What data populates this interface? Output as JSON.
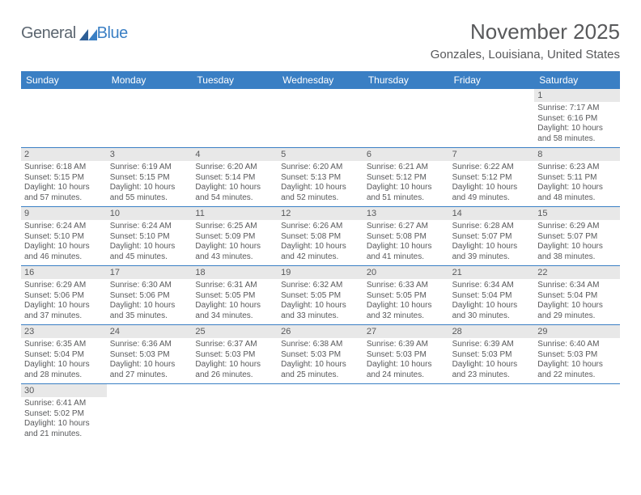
{
  "logo": {
    "part1": "General",
    "part2": "Blue"
  },
  "header": {
    "title": "November 2025",
    "location": "Gonzales, Louisiana, United States"
  },
  "colors": {
    "accent": "#3a7fc4",
    "text": "#58595b",
    "daynum_bg": "#e8e8e8",
    "logo_gray": "#5c6670"
  },
  "dayNames": [
    "Sunday",
    "Monday",
    "Tuesday",
    "Wednesday",
    "Thursday",
    "Friday",
    "Saturday"
  ],
  "weeks": [
    [
      null,
      null,
      null,
      null,
      null,
      null,
      {
        "d": "1",
        "sr": "Sunrise: 7:17 AM",
        "ss": "Sunset: 6:16 PM",
        "dl1": "Daylight: 10 hours",
        "dl2": "and 58 minutes."
      }
    ],
    [
      {
        "d": "2",
        "sr": "Sunrise: 6:18 AM",
        "ss": "Sunset: 5:15 PM",
        "dl1": "Daylight: 10 hours",
        "dl2": "and 57 minutes."
      },
      {
        "d": "3",
        "sr": "Sunrise: 6:19 AM",
        "ss": "Sunset: 5:15 PM",
        "dl1": "Daylight: 10 hours",
        "dl2": "and 55 minutes."
      },
      {
        "d": "4",
        "sr": "Sunrise: 6:20 AM",
        "ss": "Sunset: 5:14 PM",
        "dl1": "Daylight: 10 hours",
        "dl2": "and 54 minutes."
      },
      {
        "d": "5",
        "sr": "Sunrise: 6:20 AM",
        "ss": "Sunset: 5:13 PM",
        "dl1": "Daylight: 10 hours",
        "dl2": "and 52 minutes."
      },
      {
        "d": "6",
        "sr": "Sunrise: 6:21 AM",
        "ss": "Sunset: 5:12 PM",
        "dl1": "Daylight: 10 hours",
        "dl2": "and 51 minutes."
      },
      {
        "d": "7",
        "sr": "Sunrise: 6:22 AM",
        "ss": "Sunset: 5:12 PM",
        "dl1": "Daylight: 10 hours",
        "dl2": "and 49 minutes."
      },
      {
        "d": "8",
        "sr": "Sunrise: 6:23 AM",
        "ss": "Sunset: 5:11 PM",
        "dl1": "Daylight: 10 hours",
        "dl2": "and 48 minutes."
      }
    ],
    [
      {
        "d": "9",
        "sr": "Sunrise: 6:24 AM",
        "ss": "Sunset: 5:10 PM",
        "dl1": "Daylight: 10 hours",
        "dl2": "and 46 minutes."
      },
      {
        "d": "10",
        "sr": "Sunrise: 6:24 AM",
        "ss": "Sunset: 5:10 PM",
        "dl1": "Daylight: 10 hours",
        "dl2": "and 45 minutes."
      },
      {
        "d": "11",
        "sr": "Sunrise: 6:25 AM",
        "ss": "Sunset: 5:09 PM",
        "dl1": "Daylight: 10 hours",
        "dl2": "and 43 minutes."
      },
      {
        "d": "12",
        "sr": "Sunrise: 6:26 AM",
        "ss": "Sunset: 5:08 PM",
        "dl1": "Daylight: 10 hours",
        "dl2": "and 42 minutes."
      },
      {
        "d": "13",
        "sr": "Sunrise: 6:27 AM",
        "ss": "Sunset: 5:08 PM",
        "dl1": "Daylight: 10 hours",
        "dl2": "and 41 minutes."
      },
      {
        "d": "14",
        "sr": "Sunrise: 6:28 AM",
        "ss": "Sunset: 5:07 PM",
        "dl1": "Daylight: 10 hours",
        "dl2": "and 39 minutes."
      },
      {
        "d": "15",
        "sr": "Sunrise: 6:29 AM",
        "ss": "Sunset: 5:07 PM",
        "dl1": "Daylight: 10 hours",
        "dl2": "and 38 minutes."
      }
    ],
    [
      {
        "d": "16",
        "sr": "Sunrise: 6:29 AM",
        "ss": "Sunset: 5:06 PM",
        "dl1": "Daylight: 10 hours",
        "dl2": "and 37 minutes."
      },
      {
        "d": "17",
        "sr": "Sunrise: 6:30 AM",
        "ss": "Sunset: 5:06 PM",
        "dl1": "Daylight: 10 hours",
        "dl2": "and 35 minutes."
      },
      {
        "d": "18",
        "sr": "Sunrise: 6:31 AM",
        "ss": "Sunset: 5:05 PM",
        "dl1": "Daylight: 10 hours",
        "dl2": "and 34 minutes."
      },
      {
        "d": "19",
        "sr": "Sunrise: 6:32 AM",
        "ss": "Sunset: 5:05 PM",
        "dl1": "Daylight: 10 hours",
        "dl2": "and 33 minutes."
      },
      {
        "d": "20",
        "sr": "Sunrise: 6:33 AM",
        "ss": "Sunset: 5:05 PM",
        "dl1": "Daylight: 10 hours",
        "dl2": "and 32 minutes."
      },
      {
        "d": "21",
        "sr": "Sunrise: 6:34 AM",
        "ss": "Sunset: 5:04 PM",
        "dl1": "Daylight: 10 hours",
        "dl2": "and 30 minutes."
      },
      {
        "d": "22",
        "sr": "Sunrise: 6:34 AM",
        "ss": "Sunset: 5:04 PM",
        "dl1": "Daylight: 10 hours",
        "dl2": "and 29 minutes."
      }
    ],
    [
      {
        "d": "23",
        "sr": "Sunrise: 6:35 AM",
        "ss": "Sunset: 5:04 PM",
        "dl1": "Daylight: 10 hours",
        "dl2": "and 28 minutes."
      },
      {
        "d": "24",
        "sr": "Sunrise: 6:36 AM",
        "ss": "Sunset: 5:03 PM",
        "dl1": "Daylight: 10 hours",
        "dl2": "and 27 minutes."
      },
      {
        "d": "25",
        "sr": "Sunrise: 6:37 AM",
        "ss": "Sunset: 5:03 PM",
        "dl1": "Daylight: 10 hours",
        "dl2": "and 26 minutes."
      },
      {
        "d": "26",
        "sr": "Sunrise: 6:38 AM",
        "ss": "Sunset: 5:03 PM",
        "dl1": "Daylight: 10 hours",
        "dl2": "and 25 minutes."
      },
      {
        "d": "27",
        "sr": "Sunrise: 6:39 AM",
        "ss": "Sunset: 5:03 PM",
        "dl1": "Daylight: 10 hours",
        "dl2": "and 24 minutes."
      },
      {
        "d": "28",
        "sr": "Sunrise: 6:39 AM",
        "ss": "Sunset: 5:03 PM",
        "dl1": "Daylight: 10 hours",
        "dl2": "and 23 minutes."
      },
      {
        "d": "29",
        "sr": "Sunrise: 6:40 AM",
        "ss": "Sunset: 5:03 PM",
        "dl1": "Daylight: 10 hours",
        "dl2": "and 22 minutes."
      }
    ],
    [
      {
        "d": "30",
        "sr": "Sunrise: 6:41 AM",
        "ss": "Sunset: 5:02 PM",
        "dl1": "Daylight: 10 hours",
        "dl2": "and 21 minutes."
      },
      null,
      null,
      null,
      null,
      null,
      null
    ]
  ]
}
